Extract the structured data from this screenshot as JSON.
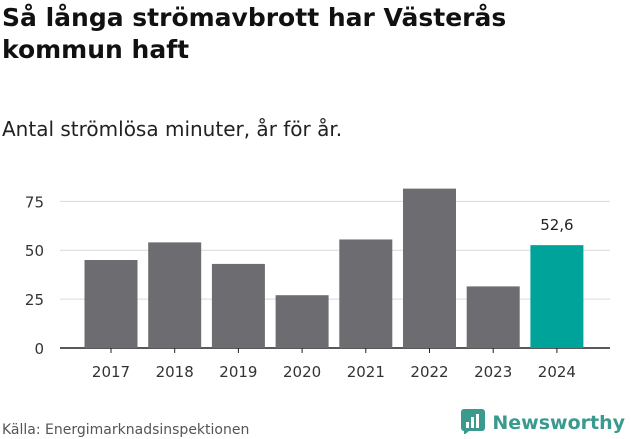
{
  "title": "Så långa strömavbrott har Västerås kommun haft",
  "subtitle": "Antal strömlösa minuter, år för år.",
  "source": "Källa: Energimarknadsinspektionen",
  "brand": {
    "name": "Newsworthy",
    "icon": "newsworthy-logo-icon",
    "color": "#3a9a8e"
  },
  "colors": {
    "bar": "#6d6c70",
    "highlight": "#00a39a",
    "grid": "#d9d9d9",
    "axis": "#222222"
  },
  "chart_data": {
    "type": "bar",
    "categories": [
      "2017",
      "2018",
      "2019",
      "2020",
      "2021",
      "2022",
      "2023",
      "2024"
    ],
    "values": [
      45,
      54,
      43,
      27,
      55.5,
      81.5,
      31.5,
      52.6
    ],
    "highlight_index": 7,
    "data_labels": [
      {
        "index": 7,
        "text": "52,6"
      }
    ],
    "y_ticks": [
      0,
      25,
      50,
      75
    ],
    "ylim": [
      0,
      90
    ],
    "title": "Så långa strömavbrott har Västerås kommun haft",
    "subtitle": "Antal strömlösa minuter, år för år.",
    "xlabel": "",
    "ylabel": "",
    "grid": true,
    "legend": "none"
  }
}
